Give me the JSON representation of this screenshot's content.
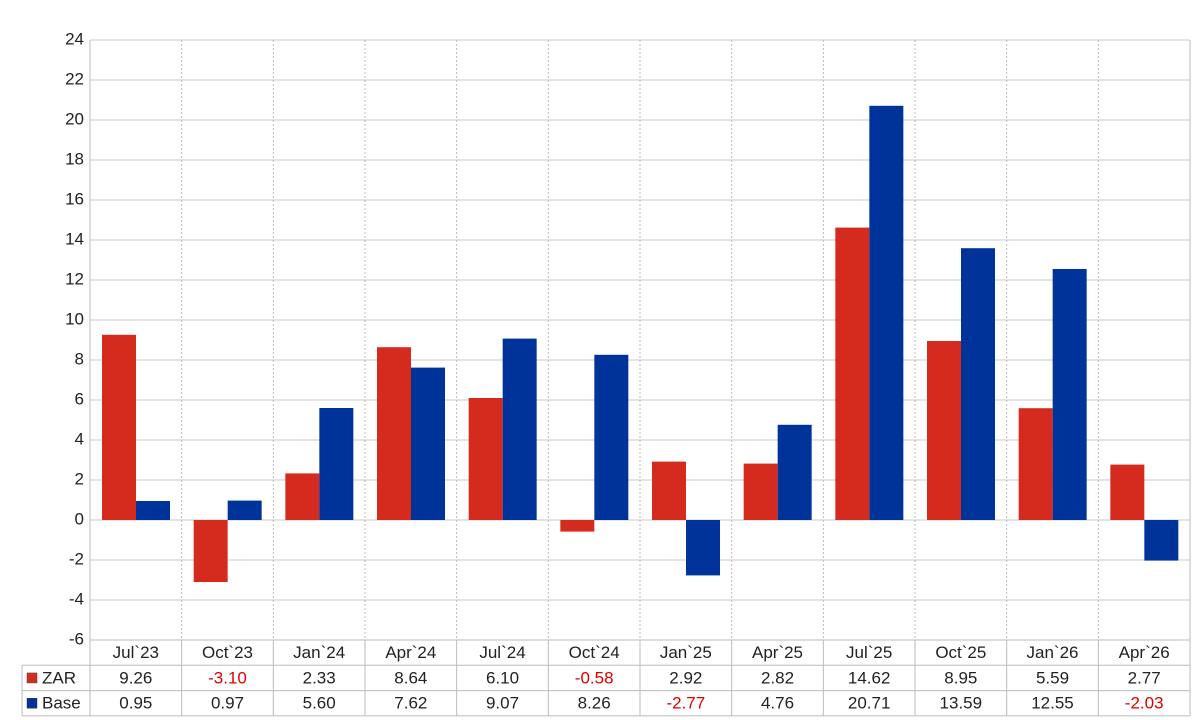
{
  "chart_data": {
    "type": "bar",
    "categories": [
      "Jul`23",
      "Oct`23",
      "Jan`24",
      "Apr`24",
      "Jul`24",
      "Oct`24",
      "Jan`25",
      "Apr`25",
      "Jul`25",
      "Oct`25",
      "Jan`26",
      "Apr`26"
    ],
    "series": [
      {
        "name": "ZAR",
        "color": "#d52b1e",
        "values": [
          9.26,
          -3.1,
          2.33,
          8.64,
          6.1,
          -0.58,
          2.92,
          2.82,
          14.62,
          8.95,
          5.59,
          2.77
        ],
        "value_labels": [
          "9.26",
          "-3.10",
          "2.33",
          "8.64",
          "6.10",
          "-0.58",
          "2.92",
          "2.82",
          "14.62",
          "8.95",
          "5.59",
          "2.77"
        ]
      },
      {
        "name": "Base",
        "color": "#003399",
        "values": [
          0.95,
          0.97,
          5.6,
          7.62,
          9.07,
          8.26,
          -2.77,
          4.76,
          20.71,
          13.59,
          12.55,
          -2.03
        ],
        "value_labels": [
          "0.95",
          "0.97",
          "5.60",
          "7.62",
          "9.07",
          "8.26",
          "-2.77",
          "4.76",
          "20.71",
          "13.59",
          "12.55",
          "-2.03"
        ]
      }
    ],
    "ylim": [
      -6,
      24
    ],
    "yticks": [
      -6,
      -4,
      -2,
      0,
      2,
      4,
      6,
      8,
      10,
      12,
      14,
      16,
      18,
      20,
      22,
      24
    ],
    "grid": true
  }
}
